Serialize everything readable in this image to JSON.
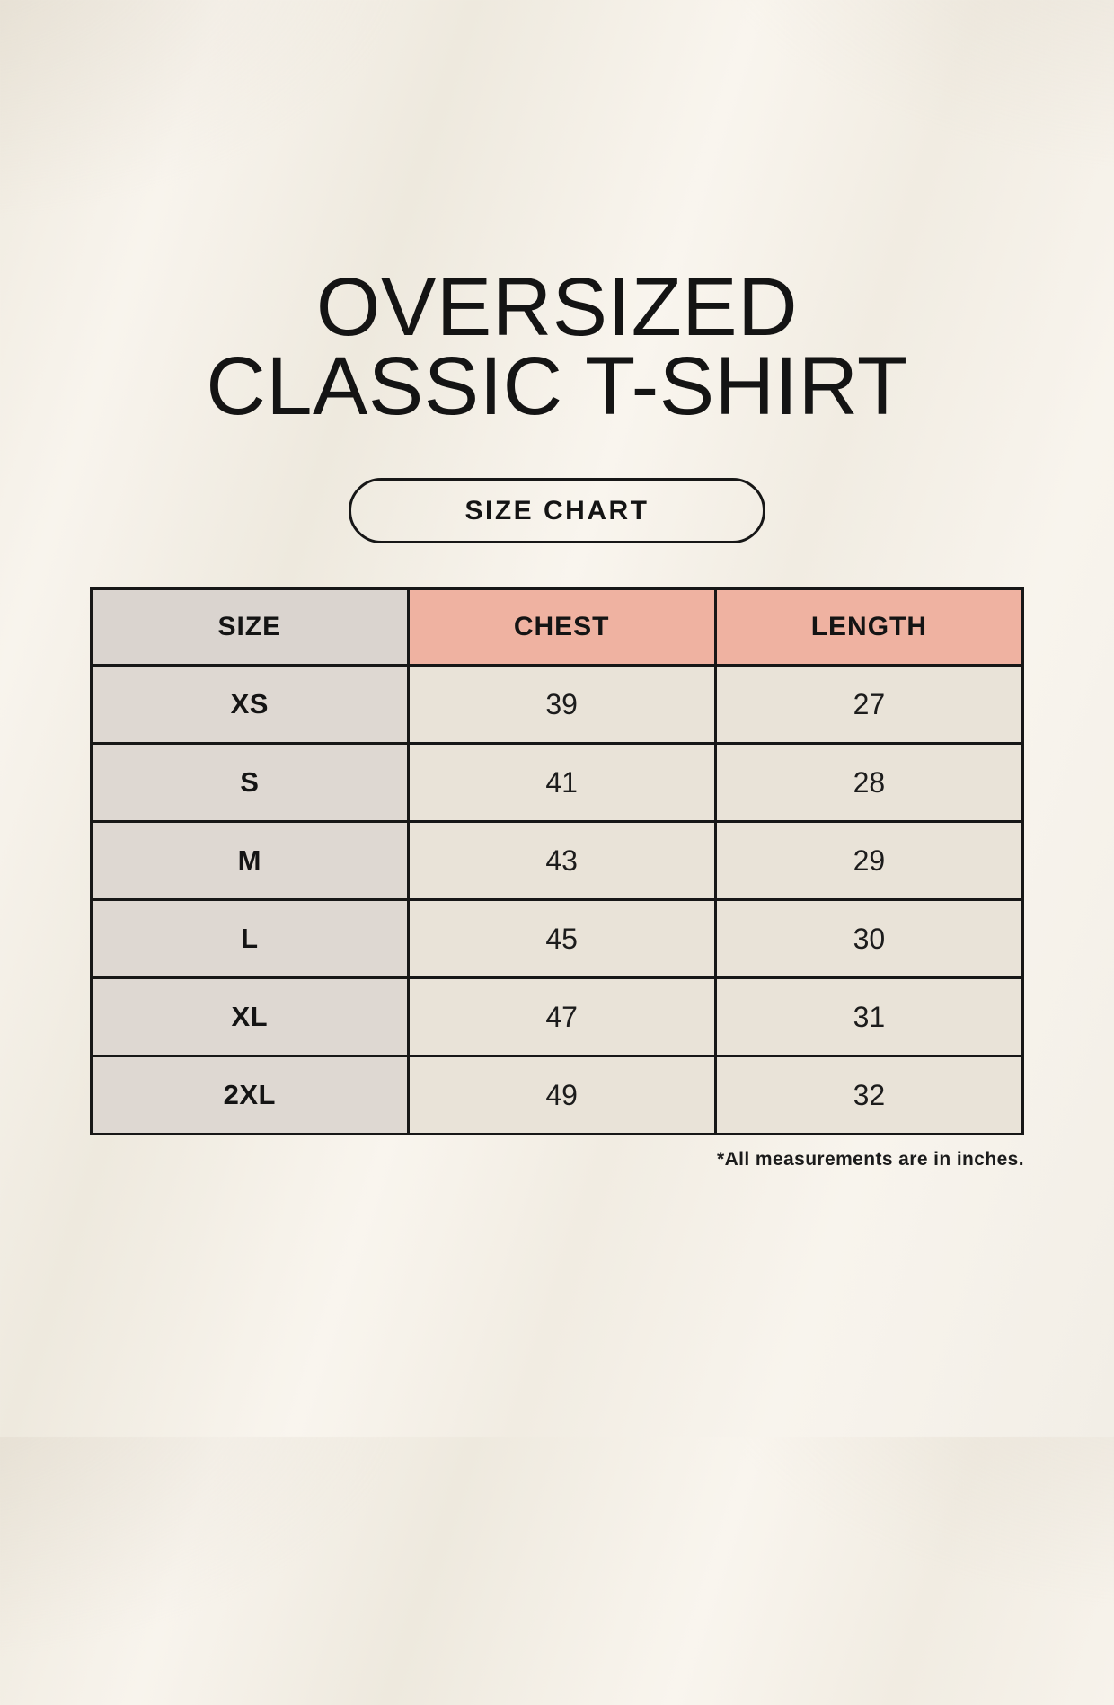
{
  "header": {
    "title_line1": "OVERSIZED",
    "title_line2": "CLASSIC T-SHIRT",
    "badge_label": "SIZE CHART"
  },
  "table": {
    "headers": [
      "SIZE",
      "CHEST",
      "LENGTH"
    ],
    "rows": [
      {
        "size": "XS",
        "chest": "39",
        "length": "27"
      },
      {
        "size": "S",
        "chest": "41",
        "length": "28"
      },
      {
        "size": "M",
        "chest": "43",
        "length": "29"
      },
      {
        "size": "L",
        "chest": "45",
        "length": "30"
      },
      {
        "size": "XL",
        "chest": "47",
        "length": "31"
      },
      {
        "size": "2XL",
        "chest": "49",
        "length": "32"
      }
    ]
  },
  "footnote": {
    "text": "*All measurements are in inches."
  },
  "colors": {
    "page_background": "#f5f1e9",
    "size_header_bg": "#dad4cf",
    "measure_header_bg": "#efb2a1",
    "size_column_bg": "#ded8d2",
    "data_cell_bg": "#e9e3d8",
    "table_border": "#171717",
    "text": "#141414"
  }
}
